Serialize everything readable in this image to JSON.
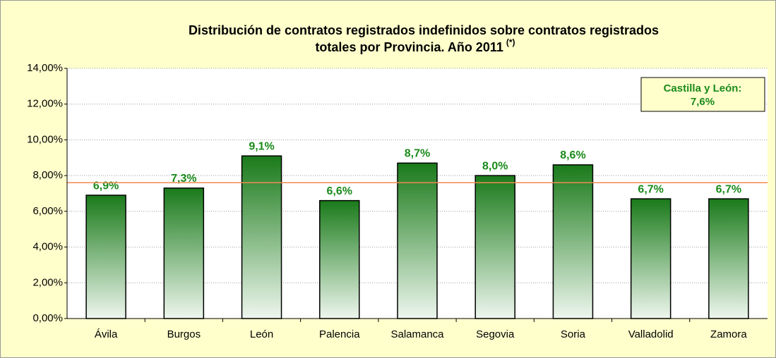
{
  "chart_data": {
    "type": "bar",
    "title": [
      "Distribución de contratos registrados indefinidos sobre contratos registrados",
      "totales por Provincia. Año 2011"
    ],
    "title_note": "(*)",
    "categories": [
      "Ávila",
      "Burgos",
      "León",
      "Palencia",
      "Salamanca",
      "Segovia",
      "Soria",
      "Valladolid",
      "Zamora"
    ],
    "values": [
      6.9,
      7.3,
      9.1,
      6.6,
      8.7,
      8.0,
      8.6,
      6.7,
      6.7
    ],
    "value_labels": [
      "6,9%",
      "7,3%",
      "9,1%",
      "6,6%",
      "8,7%",
      "8,0%",
      "8,6%",
      "6,7%",
      "6,7%"
    ],
    "color": "#1a7a1a",
    "ylim": [
      0,
      14
    ],
    "yticks": [
      {
        "value": 0,
        "label": "0,00%"
      },
      {
        "value": 2,
        "label": "2,00%"
      },
      {
        "value": 4,
        "label": "4,00%"
      },
      {
        "value": 6,
        "label": "6,00%"
      },
      {
        "value": 8,
        "label": "8,00%"
      },
      {
        "value": 10,
        "label": "10,00%"
      },
      {
        "value": 12,
        "label": "12,00%"
      },
      {
        "value": 14,
        "label": "14,00%"
      }
    ],
    "grid": true,
    "reference_line": {
      "value": 7.6,
      "label": "Castilla y León:",
      "value_label": "7,6%",
      "color": "#f08a50"
    }
  }
}
